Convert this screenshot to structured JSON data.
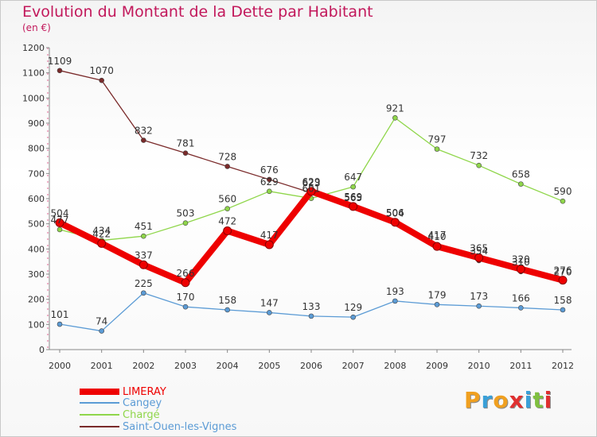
{
  "header": {
    "title": "Evolution du Montant de la Dette par Habitant",
    "unit": "(en €)"
  },
  "logo": {
    "text": "Proxiti",
    "colors": [
      "#f0a020",
      "#3aa0d8",
      "#f0a020",
      "#e03030",
      "#3aa0d8",
      "#80c040",
      "#e03030"
    ]
  },
  "chart_data": {
    "type": "line",
    "title": "Evolution du Montant de la Dette par Habitant",
    "ylabel": "(en €)",
    "xlabel": "",
    "categories": [
      "2000",
      "2001",
      "2002",
      "2003",
      "2004",
      "2005",
      "2006",
      "2007",
      "2008",
      "2009",
      "2010",
      "2011",
      "2012"
    ],
    "ylim": [
      0,
      1200
    ],
    "yticks": [
      0,
      100,
      200,
      300,
      400,
      500,
      600,
      700,
      800,
      900,
      1000,
      1100,
      1200
    ],
    "grid": false,
    "legend_position": "bottom-left",
    "series": [
      {
        "name": "LIMERAY",
        "color": "#ee0000",
        "values": [
          504,
          422,
          337,
          266,
          472,
          417,
          629,
          569,
          506,
          410,
          365,
          320,
          276
        ],
        "labels": [
          "504",
          "422",
          "337",
          "266",
          "472",
          "417",
          "629",
          "569",
          "506",
          "410",
          "365",
          "320",
          "276"
        ]
      },
      {
        "name": "Cangey",
        "color": "#5b9bd5",
        "values": [
          101,
          74,
          225,
          170,
          158,
          147,
          133,
          129,
          193,
          179,
          173,
          166,
          158
        ],
        "labels": [
          "101",
          "74",
          "225",
          "170",
          "158",
          "147",
          "133",
          "129",
          "193",
          "179",
          "173",
          "166",
          "158"
        ]
      },
      {
        "name": "Charge",
        "color": "#8fd64a",
        "values": [
          477,
          434,
          451,
          503,
          560,
          629,
          601,
          647,
          921,
          797,
          732,
          658,
          590
        ],
        "labels": [
          "477",
          "434",
          "451",
          "503",
          "560",
          "629",
          "601",
          "647",
          "921",
          "797",
          "732",
          "658",
          "590"
        ]
      },
      {
        "name": "Saint-Ouen-les-Vignes",
        "color": "#7a2a2a",
        "values": [
          1109,
          1070,
          832,
          781,
          728,
          676,
          623,
          565,
          504,
          417,
          354,
          310,
          270
        ],
        "labels": [
          "1109",
          "1070",
          "832",
          "781",
          "728",
          "676",
          "623",
          "565",
          "504",
          "417",
          "354",
          "310",
          "270"
        ]
      }
    ]
  },
  "legend": [
    {
      "label": "LIMERAY",
      "color": "#ee0000"
    },
    {
      "label": "Cangey",
      "color": "#5b9bd5"
    },
    {
      "label": "Chargé",
      "color": "#8fd64a"
    },
    {
      "label": "Saint-Ouen-les-Vignes",
      "color": "#7a2a2a"
    }
  ]
}
